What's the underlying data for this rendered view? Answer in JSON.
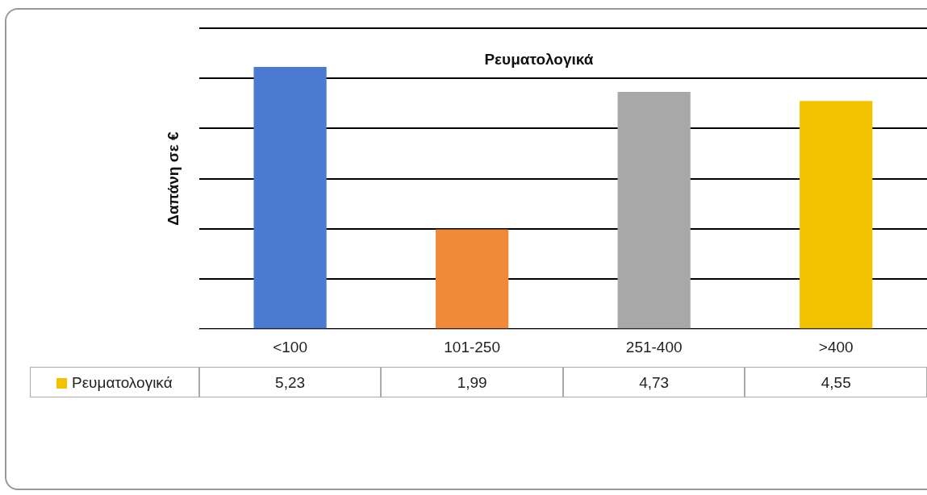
{
  "chart_data": {
    "type": "bar",
    "title": "Ρευματολογικά",
    "ylabel": "Δαπάνη σε €",
    "categories": [
      "<100",
      "101-250",
      "251-400",
      ">400"
    ],
    "series": [
      {
        "name": "Ρευματολογικά",
        "color": "#f2c200",
        "colors": [
          "#4a7bd0",
          "#f08a3a",
          "#a8a8a8",
          "#f2c200"
        ],
        "values": [
          5.23,
          1.99,
          4.73,
          4.55
        ],
        "value_labels": [
          "5,23",
          "1,99",
          "4,73",
          "4,55"
        ]
      }
    ],
    "ylim": [
      0,
      6
    ],
    "yticks": [
      {
        "value": 0,
        "label": null
      },
      {
        "value": 1,
        "label": null
      },
      {
        "value": 2,
        "label": null
      },
      {
        "value": 3,
        "label": null
      },
      {
        "value": 4,
        "label": null
      },
      {
        "value": 5,
        "label": null
      },
      {
        "value": 6,
        "label": null
      }
    ],
    "grid": "y",
    "tick_labels": "x",
    "legend": "bottom"
  }
}
